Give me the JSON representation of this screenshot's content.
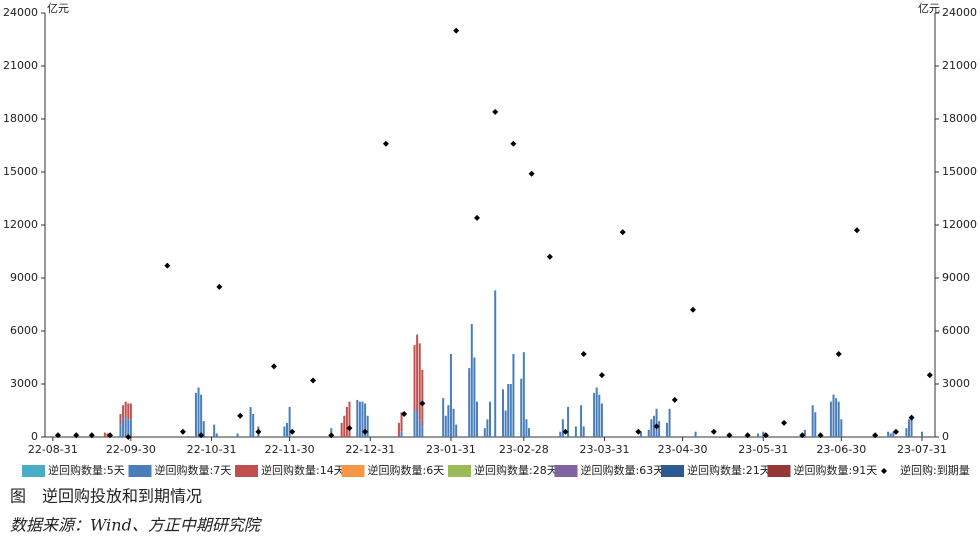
{
  "chart_data": {
    "type": "bar",
    "y_unit": "亿元",
    "y2_unit": "亿元",
    "caption": "图　逆回购投放和到期情况",
    "source": "数据来源：Wind、方正中期研究院",
    "xlim": [
      "22-08-28",
      "23-08-05"
    ],
    "xticks": [
      "22-08-31",
      "22-09-30",
      "22-10-31",
      "22-11-30",
      "22-12-31",
      "23-01-31",
      "23-02-28",
      "23-03-31",
      "23-04-30",
      "23-05-31",
      "23-06-30",
      "23-07-31"
    ],
    "ylim": [
      0,
      24000
    ],
    "yticks": [
      0,
      3000,
      6000,
      9000,
      12000,
      15000,
      18000,
      21000,
      24000
    ],
    "y2lim": [
      0,
      24000
    ],
    "y2ticks": [
      0,
      3000,
      6000,
      9000,
      12000,
      15000,
      18000,
      21000,
      24000
    ],
    "stacked": true,
    "series": [
      {
        "name": "逆回购数量:5天",
        "color": "#4bacc6",
        "x": [],
        "values": []
      },
      {
        "name": "逆回购数量:7天",
        "color": "#4a7ebb",
        "x": [
          "22-09-26",
          "22-09-27",
          "22-09-28",
          "22-09-29",
          "22-09-30",
          "22-10-25",
          "22-10-26",
          "22-10-27",
          "22-10-28",
          "22-11-01",
          "22-11-02",
          "22-11-10",
          "22-11-15",
          "22-11-16",
          "22-11-18",
          "22-11-28",
          "22-11-29",
          "22-11-30",
          "22-12-16",
          "22-12-26",
          "22-12-27",
          "22-12-28",
          "22-12-29",
          "22-12-30",
          "23-01-12",
          "23-01-17",
          "23-01-18",
          "23-01-19",
          "23-01-20",
          "23-01-28",
          "23-01-29",
          "23-01-30",
          "23-01-31",
          "23-02-01",
          "23-02-02",
          "23-02-07",
          "23-02-08",
          "23-02-09",
          "23-02-10",
          "23-02-13",
          "23-02-14",
          "23-02-15",
          "23-02-17",
          "23-02-20",
          "23-02-21",
          "23-02-22",
          "23-02-23",
          "23-02-24",
          "23-02-27",
          "23-02-28",
          "23-03-01",
          "23-03-02",
          "23-03-14",
          "23-03-15",
          "23-03-17",
          "23-03-20",
          "23-03-22",
          "23-03-23",
          "23-03-27",
          "23-03-28",
          "23-03-29",
          "23-03-30",
          "23-04-14",
          "23-04-17",
          "23-04-18",
          "23-04-19",
          "23-04-20",
          "23-04-21",
          "23-04-24",
          "23-04-25",
          "23-05-05",
          "23-05-29",
          "23-05-31",
          "23-06-01",
          "23-06-16",
          "23-06-19",
          "23-06-20",
          "23-06-26",
          "23-06-27",
          "23-06-28",
          "23-06-29",
          "23-06-30",
          "23-07-18",
          "23-07-19",
          "23-07-20",
          "23-07-25",
          "23-07-26",
          "23-07-27",
          "23-07-31"
        ],
        "values": [
          700,
          1100,
          1100,
          1000,
          1000,
          2500,
          2800,
          2400,
          900,
          700,
          200,
          200,
          1700,
          1300,
          600,
          600,
          800,
          1700,
          500,
          2100,
          2000,
          2000,
          1900,
          1200,
          300,
          1500,
          1500,
          1000,
          600,
          2200,
          1200,
          1800,
          4700,
          1600,
          700,
          3900,
          6400,
          4500,
          2000,
          500,
          1000,
          2000,
          8300,
          2700,
          1500,
          3000,
          3000,
          4700,
          3300,
          4800,
          1000,
          500,
          300,
          1000,
          1700,
          600,
          1800,
          600,
          2500,
          2800,
          2400,
          1900,
          300,
          400,
          1000,
          1200,
          1600,
          900,
          800,
          1600,
          300,
          200,
          300,
          200,
          400,
          1800,
          1400,
          2000,
          2400,
          2200,
          2000,
          1000,
          300,
          200,
          300,
          500,
          1000,
          1100,
          300
        ]
      },
      {
        "name": "逆回购数量:14天",
        "color": "#c0504d",
        "x": [
          "22-09-20",
          "22-09-21",
          "22-09-22",
          "22-09-26",
          "22-09-27",
          "22-09-28",
          "22-09-29",
          "22-09-30",
          "22-12-20",
          "22-12-21",
          "22-12-22",
          "22-12-23",
          "23-01-11",
          "23-01-12",
          "23-01-17",
          "23-01-18",
          "23-01-19",
          "23-01-20"
        ],
        "values": [
          250,
          200,
          200,
          600,
          700,
          900,
          900,
          900,
          800,
          1200,
          1700,
          2000,
          800,
          1100,
          3700,
          4300,
          4300,
          3200
        ]
      },
      {
        "name": "逆回购数量:6天",
        "color": "#f79646",
        "x": [],
        "values": []
      },
      {
        "name": "逆回购数量:28天",
        "color": "#9bbb59",
        "x": [],
        "values": []
      },
      {
        "name": "逆回购数量:63天",
        "color": "#8064a2",
        "x": [],
        "values": []
      },
      {
        "name": "逆回购数量:21天",
        "color": "#2c5a91",
        "x": [],
        "values": []
      },
      {
        "name": "逆回购数量:91天",
        "color": "#953735",
        "x": [],
        "values": []
      },
      {
        "name": "逆回购:到期量",
        "color": "#000000",
        "type": "scatter",
        "axis": "y2",
        "x": [
          "22-09-02",
          "22-09-09",
          "22-09-15",
          "22-09-22",
          "22-09-29",
          "22-10-14",
          "22-10-20",
          "22-10-27",
          "22-11-03",
          "22-11-11",
          "22-11-18",
          "22-11-24",
          "22-12-01",
          "22-12-09",
          "22-12-16",
          "22-12-23",
          "22-12-29",
          "23-01-06",
          "23-01-13",
          "23-01-20",
          "23-02-02",
          "23-02-10",
          "23-02-17",
          "23-02-24",
          "23-03-03",
          "23-03-10",
          "23-03-16",
          "23-03-23",
          "23-03-30",
          "23-04-07",
          "23-04-13",
          "23-04-20",
          "23-04-27",
          "23-05-04",
          "23-05-12",
          "23-05-18",
          "23-05-25",
          "23-06-01",
          "23-06-08",
          "23-06-15",
          "23-06-22",
          "23-06-29",
          "23-07-06",
          "23-07-13",
          "23-07-21",
          "23-07-27",
          "23-08-03"
        ],
        "values": [
          100,
          100,
          100,
          100,
          0,
          9700,
          300,
          100,
          8500,
          1200,
          300,
          4000,
          300,
          3200,
          100,
          500,
          300,
          16600,
          1300,
          1900,
          23000,
          12400,
          18400,
          16600,
          14900,
          10200,
          300,
          4700,
          3500,
          11600,
          300,
          600,
          2100,
          7200,
          300,
          100,
          100,
          100,
          800,
          100,
          100,
          4700,
          11700,
          100,
          300,
          1100,
          3500
        ]
      }
    ]
  }
}
